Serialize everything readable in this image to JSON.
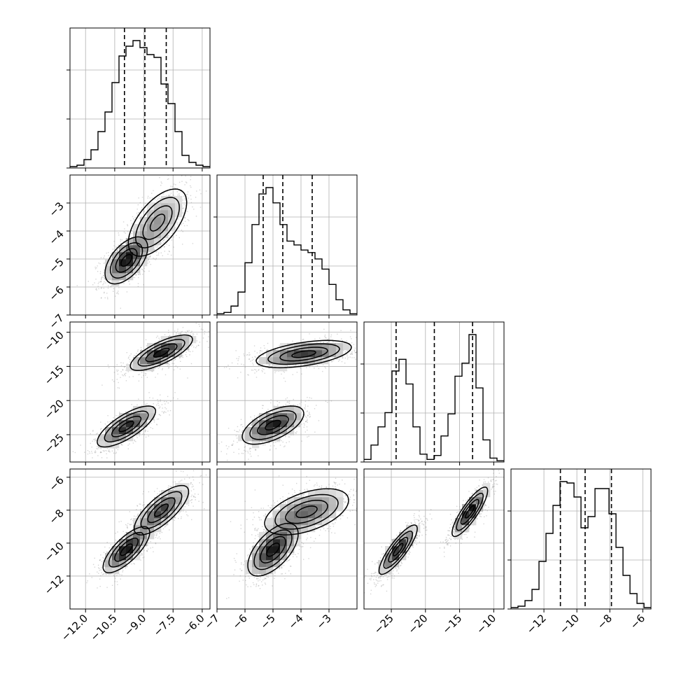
{
  "chart_data": {
    "type": "corner",
    "parameters": [
      {
        "range": [
          -12.8,
          -5.6
        ],
        "ticks": [
          -12.0,
          -10.5,
          -9.0,
          -7.5,
          -6.0
        ],
        "tick_labels": [
          "−12.0",
          "−10.5",
          "−9.0",
          "−7.5",
          "−6.0"
        ],
        "quantiles": [
          -10.0,
          -8.95,
          -7.85
        ],
        "histogram": [
          0.01,
          0.02,
          0.06,
          0.13,
          0.26,
          0.4,
          0.61,
          0.8,
          0.87,
          0.91,
          0.86,
          0.81,
          0.79,
          0.6,
          0.46,
          0.26,
          0.09,
          0.04,
          0.02,
          0.01
        ]
      },
      {
        "range": [
          -7,
          -2
        ],
        "ticks": [
          -7,
          -6,
          -5,
          -4,
          -3
        ],
        "tick_labels": [
          "−7",
          "−6",
          "−5",
          "−4",
          "−3"
        ],
        "quantiles": [
          -5.35,
          -4.65,
          -3.6
        ],
        "histogram": [
          0.01,
          0.02,
          0.07,
          0.18,
          0.41,
          0.71,
          0.95,
          1.0,
          0.88,
          0.71,
          0.58,
          0.55,
          0.51,
          0.49,
          0.44,
          0.36,
          0.24,
          0.12,
          0.04,
          0.01
        ]
      },
      {
        "range": [
          -29,
          -8.5
        ],
        "ticks": [
          -25,
          -20,
          -15,
          -10
        ],
        "tick_labels": [
          "−25",
          "−20",
          "−15",
          "−10"
        ],
        "quantiles": [
          -24.3,
          -18.7,
          -13.1
        ],
        "histogram": [
          0.02,
          0.13,
          0.27,
          0.38,
          0.7,
          0.79,
          0.6,
          0.27,
          0.06,
          0.02,
          0.05,
          0.2,
          0.37,
          0.66,
          0.76,
          0.98,
          0.57,
          0.17,
          0.03,
          0.01
        ]
      },
      {
        "range": [
          -14,
          -5.5
        ],
        "ticks": [
          -12,
          -10,
          -8,
          -6
        ],
        "tick_labels": [
          "−12",
          "−10",
          "−8",
          "−6"
        ],
        "quantiles": [
          -11.0,
          -9.5,
          -7.9
        ],
        "histogram": [
          0.01,
          0.02,
          0.06,
          0.14,
          0.34,
          0.54,
          0.74,
          0.91,
          0.9,
          0.8,
          0.58,
          0.66,
          0.86,
          0.86,
          0.68,
          0.44,
          0.24,
          0.11,
          0.04,
          0.01
        ]
      }
    ],
    "y_axes": [
      null,
      {
        "range": [
          -7,
          -2
        ],
        "ticks": [
          -7,
          -6,
          -5,
          -4,
          -3
        ],
        "tick_labels": [
          "−7",
          "−6",
          "−5",
          "−4",
          "−3"
        ]
      },
      {
        "range": [
          -29,
          -8.5
        ],
        "ticks": [
          -25,
          -20,
          -15,
          -10
        ],
        "tick_labels": [
          "−25",
          "−20",
          "−15",
          "−10"
        ]
      },
      {
        "range": [
          -14,
          -5.5
        ],
        "ticks": [
          -12,
          -10,
          -8,
          -6
        ],
        "tick_labels": [
          "−12",
          "−10",
          "−8",
          "−6"
        ]
      }
    ],
    "joint_modes": [
      {
        "pair": [
          0,
          1
        ],
        "modes": [
          {
            "center": [
              -9.9,
              -5.05
            ],
            "sd": [
              0.55,
              0.42
            ],
            "rho": 0.55,
            "weight": 0.55
          },
          {
            "center": [
              -8.3,
              -3.7
            ],
            "sd": [
              0.75,
              0.6
            ],
            "rho": 0.6,
            "weight": 0.45
          }
        ]
      },
      {
        "pair": [
          0,
          2
        ],
        "modes": [
          {
            "center": [
              -9.9,
              -23.8
            ],
            "sd": [
              0.75,
              1.5
            ],
            "rho": 0.75,
            "weight": 0.5
          },
          {
            "center": [
              -8.1,
              -13.0
            ],
            "sd": [
              0.8,
              1.3
            ],
            "rho": 0.75,
            "weight": 0.5
          }
        ]
      },
      {
        "pair": [
          1,
          2
        ],
        "modes": [
          {
            "center": [
              -5.0,
              -23.6
            ],
            "sd": [
              0.55,
              1.4
            ],
            "rho": 0.6,
            "weight": 0.5
          },
          {
            "center": [
              -3.9,
              -13.2
            ],
            "sd": [
              0.85,
              1.0
            ],
            "rho": 0.5,
            "weight": 0.5
          }
        ]
      },
      {
        "pair": [
          0,
          3
        ],
        "modes": [
          {
            "center": [
              -9.9,
              -10.4
            ],
            "sd": [
              0.6,
              0.7
            ],
            "rho": 0.75,
            "weight": 0.5
          },
          {
            "center": [
              -8.1,
              -8.0
            ],
            "sd": [
              0.7,
              0.75
            ],
            "rho": 0.75,
            "weight": 0.5
          }
        ]
      },
      {
        "pair": [
          1,
          3
        ],
        "modes": [
          {
            "center": [
              -5.0,
              -10.4
            ],
            "sd": [
              0.45,
              0.8
            ],
            "rho": 0.6,
            "weight": 0.5
          },
          {
            "center": [
              -3.8,
              -8.1
            ],
            "sd": [
              0.75,
              0.7
            ],
            "rho": 0.5,
            "weight": 0.5
          }
        ]
      },
      {
        "pair": [
          2,
          3
        ],
        "modes": [
          {
            "center": [
              -24.0,
              -10.4
            ],
            "sd": [
              1.4,
              0.75
            ],
            "rho": 0.85,
            "weight": 0.5
          },
          {
            "center": [
              -13.5,
              -8.1
            ],
            "sd": [
              1.3,
              0.75
            ],
            "rho": 0.85,
            "weight": 0.5
          }
        ]
      }
    ],
    "contour_levels": [
      0.5,
      1.0,
      1.5,
      2.0
    ],
    "grid": true,
    "colors": {
      "line": "#000000",
      "points": "#888888",
      "density": "#808080",
      "grid": "#b0b0b0"
    }
  }
}
